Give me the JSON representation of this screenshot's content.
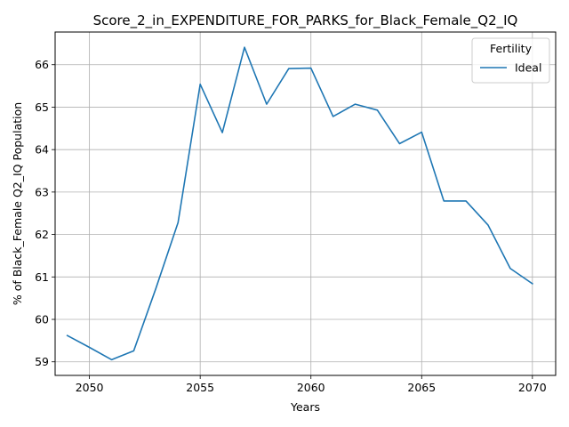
{
  "chart_data": {
    "type": "line",
    "title": "Score_2_in_EXPENDITURE_FOR_PARKS_for_Black_Female_Q2_IQ",
    "xlabel": "Years",
    "ylabel": "% of Black_Female Q2_IQ Population",
    "xlim": [
      2048.45,
      2071.05
    ],
    "ylim": [
      58.68,
      66.77
    ],
    "xticks": [
      2050,
      2055,
      2060,
      2065,
      2070
    ],
    "yticks": [
      59,
      60,
      61,
      62,
      63,
      64,
      65,
      66
    ],
    "grid": true,
    "legend": {
      "title": "Fertility",
      "position": "top-right"
    },
    "x": [
      2049,
      2050,
      2051,
      2052,
      2053,
      2054,
      2055,
      2056,
      2057,
      2058,
      2059,
      2060,
      2061,
      2062,
      2063,
      2064,
      2065,
      2066,
      2067,
      2068,
      2069,
      2070
    ],
    "series": [
      {
        "name": "Ideal",
        "color": "#1f77b4",
        "values": [
          59.62,
          59.34,
          59.05,
          59.26,
          60.73,
          62.28,
          65.54,
          64.4,
          66.41,
          65.07,
          65.91,
          65.92,
          64.78,
          65.07,
          64.93,
          64.14,
          64.41,
          62.79,
          62.79,
          62.22,
          61.2,
          60.84
        ]
      }
    ]
  }
}
